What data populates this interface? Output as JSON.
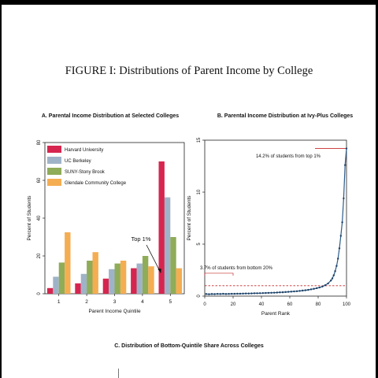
{
  "figure_title": "FIGURE I: Distributions of Parent Income by College",
  "panel_c_title": "C. Distribution of Bottom-Quintile Share Across Colleges",
  "colors": {
    "harvard": "#d6264f",
    "berkeley": "#9fb3c8",
    "suny": "#8fac58",
    "glendale": "#f5ad52",
    "line": "#2b5c8a",
    "reference": "#c62828"
  },
  "chart_data": [
    {
      "type": "bar",
      "title": "A. Parental Income Distribution at Selected Colleges",
      "xlabel": "Parent Income Quintile",
      "ylabel": "Percent of Students",
      "categories": [
        "1",
        "2",
        "3",
        "4",
        "5"
      ],
      "ylim": [
        0,
        80
      ],
      "yticks": [
        0,
        20,
        40,
        60,
        80
      ],
      "legend": "top-left",
      "grid": false,
      "series": [
        {
          "name": "Harvard University",
          "color": "#d6264f",
          "values": [
            3,
            5.5,
            8,
            13.5,
            70
          ]
        },
        {
          "name": "UC Berkeley",
          "color": "#9fb3c8",
          "values": [
            9,
            10.5,
            13,
            16,
            51
          ]
        },
        {
          "name": "SUNY-Stony Brook",
          "color": "#8fac58",
          "values": [
            16.5,
            17.5,
            16,
            20,
            30
          ]
        },
        {
          "name": "Glendale Community College",
          "color": "#f5ad52",
          "values": [
            32.5,
            22,
            17.5,
            14.5,
            13.5
          ]
        }
      ],
      "annotations": [
        {
          "text": "Top 1%",
          "x": "5",
          "y": 11
        }
      ]
    },
    {
      "type": "line",
      "title": "B. Parental Income Distribution at Ivy-Plus Colleges",
      "xlabel": "Parent Rank",
      "ylabel": "Percent of Students",
      "xlim": [
        0,
        100
      ],
      "ylim": [
        0,
        15
      ],
      "xticks": [
        0,
        20,
        40,
        60,
        80,
        100
      ],
      "yticks": [
        0,
        5,
        10,
        15
      ],
      "grid": false,
      "reference_line": {
        "y": 1,
        "style": "dashed"
      },
      "series": [
        {
          "name": "",
          "x": [
            1,
            3,
            5,
            7,
            9,
            11,
            13,
            15,
            17,
            19,
            21,
            23,
            25,
            27,
            29,
            31,
            33,
            35,
            37,
            39,
            41,
            43,
            45,
            47,
            49,
            51,
            53,
            55,
            57,
            59,
            61,
            63,
            65,
            67,
            69,
            71,
            73,
            75,
            77,
            79,
            81,
            83,
            85,
            87,
            89,
            90,
            91,
            92,
            93,
            94,
            95,
            96,
            97,
            98,
            99,
            100
          ],
          "y": [
            0.2,
            0.18,
            0.2,
            0.19,
            0.21,
            0.2,
            0.22,
            0.2,
            0.21,
            0.22,
            0.22,
            0.23,
            0.23,
            0.24,
            0.25,
            0.25,
            0.26,
            0.27,
            0.27,
            0.28,
            0.29,
            0.3,
            0.31,
            0.32,
            0.33,
            0.34,
            0.36,
            0.37,
            0.39,
            0.41,
            0.43,
            0.45,
            0.47,
            0.5,
            0.53,
            0.56,
            0.6,
            0.65,
            0.7,
            0.76,
            0.83,
            0.92,
            1.05,
            1.22,
            1.5,
            1.7,
            2.0,
            2.4,
            2.9,
            3.6,
            4.6,
            5.8,
            7.1,
            9.4,
            12.6,
            14.2
          ]
        }
      ],
      "annotations": [
        {
          "text": "14.2% of students from top 1%",
          "x": 100,
          "y": 14.2
        },
        {
          "text": "3.7% of students from bottom 20%",
          "x": 10,
          "y": 2.2
        }
      ]
    }
  ]
}
